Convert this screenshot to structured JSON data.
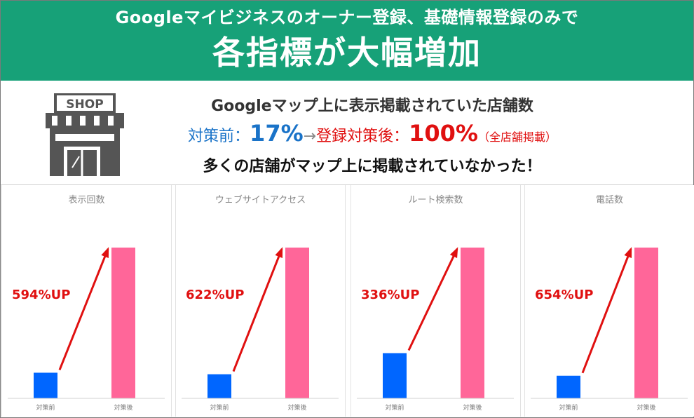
{
  "banner": {
    "line1": "Googleマイビジネスのオーナー登録、基礎情報登録のみで",
    "line2": "各指標が大幅増加"
  },
  "info": {
    "shop_sign": "SHOP",
    "title": "Googleマップ上に表示掲載されていた店舗数",
    "before_label": "対策前：",
    "before_value": "17%",
    "arrow": "→",
    "after_label": "登録対策後：",
    "after_value": "100%",
    "after_note": "（全店舗掲載）",
    "subtitle": "多くの店舗がマップ上に掲載されていなかった！"
  },
  "colors": {
    "banner": "#17a178",
    "before_bar": "#0066ff",
    "after_bar": "#ff6699",
    "arrow": "#e01010"
  },
  "chart_data": [
    {
      "type": "bar",
      "title": "表示回数",
      "categories": [
        "対策前",
        "対策後"
      ],
      "values": [
        17,
        100
      ],
      "annotation": "594%UP",
      "ylim": [
        0,
        100
      ]
    },
    {
      "type": "bar",
      "title": "ウェブサイトアクセス",
      "categories": [
        "対策前",
        "対策後"
      ],
      "values": [
        16,
        100
      ],
      "annotation": "622%UP",
      "ylim": [
        0,
        100
      ]
    },
    {
      "type": "bar",
      "title": "ルート検索数",
      "categories": [
        "対策前",
        "対策後"
      ],
      "values": [
        30,
        100
      ],
      "annotation": "336%UP",
      "ylim": [
        0,
        100
      ]
    },
    {
      "type": "bar",
      "title": "電話数",
      "categories": [
        "対策前",
        "対策後"
      ],
      "values": [
        15,
        100
      ],
      "annotation": "654%UP",
      "ylim": [
        0,
        100
      ]
    }
  ]
}
